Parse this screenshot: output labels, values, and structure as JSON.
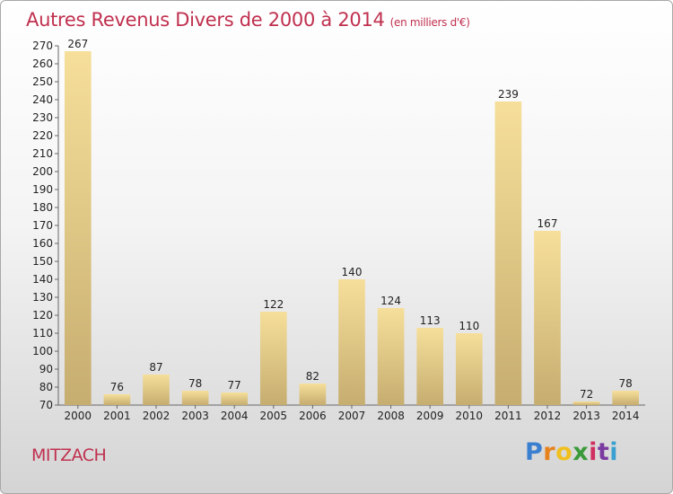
{
  "header": {
    "title": "Autres Revenus Divers de 2000 à 2014",
    "unit": "(en milliers d'€)"
  },
  "footer": {
    "place": "MITZACH",
    "brand": "Proxiti",
    "brand_colors": [
      "#3a7fd0",
      "#e8821c",
      "#f0c020",
      "#3a9a3a",
      "#d03060",
      "#7a3aa0",
      "#3aa0d0"
    ]
  },
  "colors": {
    "title": "#c0304f",
    "bar_light": "#f6df9a",
    "bar_dark": "#c6ad70",
    "axis": "#666666"
  },
  "chart_data": {
    "type": "bar",
    "title": "Autres Revenus Divers de 2000 à 2014",
    "categories": [
      "2000",
      "2001",
      "2002",
      "2003",
      "2004",
      "2005",
      "2006",
      "2007",
      "2008",
      "2009",
      "2010",
      "2011",
      "2012",
      "2013",
      "2014"
    ],
    "values": [
      267,
      76,
      87,
      78,
      77,
      122,
      82,
      140,
      124,
      113,
      110,
      239,
      167,
      72,
      78
    ],
    "ylim": [
      70,
      270
    ],
    "yticks": [
      70,
      80,
      90,
      100,
      110,
      120,
      130,
      140,
      150,
      160,
      170,
      180,
      190,
      200,
      210,
      220,
      230,
      240,
      250,
      260,
      270
    ],
    "grid": false,
    "xlabel": "",
    "ylabel": ""
  }
}
